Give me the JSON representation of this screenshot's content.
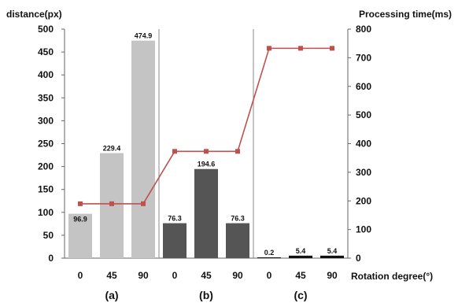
{
  "chart_data": {
    "type": "bar+line",
    "left_axis_title": "distance(px)",
    "right_axis_title": "Processing time(ms)",
    "x_axis_title": "Rotation degree(°)",
    "left_ylim": [
      0,
      500
    ],
    "left_ticks": [
      "0",
      "50",
      "100",
      "150",
      "200",
      "250",
      "300",
      "350",
      "400",
      "450",
      "500"
    ],
    "right_ylim": [
      0,
      800
    ],
    "right_ticks": [
      "0",
      "100",
      "200",
      "300",
      "400",
      "500",
      "600",
      "700",
      "800"
    ],
    "panels": [
      "(a)",
      "(b)",
      "(c)"
    ],
    "groups": [
      {
        "panel": "(a)",
        "color": "#c4c4c4",
        "categories": [
          "0",
          "45",
          "90"
        ],
        "distance": [
          96.9,
          229.4,
          474.9
        ],
        "labels": [
          "96.9",
          "229.4",
          "474.9"
        ],
        "processing_time": [
          190,
          190,
          190
        ]
      },
      {
        "panel": "(b)",
        "color": "#555555",
        "categories": [
          "0",
          "45",
          "90"
        ],
        "distance": [
          76.3,
          194.6,
          76.3
        ],
        "labels": [
          "76.3",
          "194.6",
          "76.3"
        ],
        "processing_time": [
          373,
          373,
          373
        ]
      },
      {
        "panel": "(c)",
        "color": "#111111",
        "categories": [
          "0",
          "45",
          "90"
        ],
        "distance": [
          0.2,
          5.4,
          5.4
        ],
        "labels": [
          "0.2",
          "5.4",
          "5.4"
        ],
        "processing_time": [
          733,
          733,
          733
        ]
      }
    ],
    "line_color": "#c0504d",
    "grid": false
  }
}
